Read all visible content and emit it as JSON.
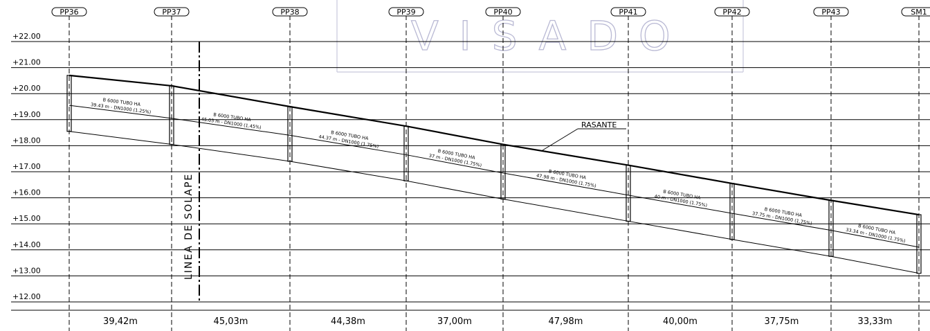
{
  "watermark": "VISADO",
  "levels": [
    "+22.00",
    "+21.00",
    "+20.00",
    "+19.00",
    "+18.00",
    "+17.00",
    "+16.00",
    "+15.00",
    "+14.00",
    "+13.00",
    "+12.00"
  ],
  "manholes": [
    {
      "label": "PP36",
      "grade": 20.7,
      "invert": 18.55
    },
    {
      "label": "PP37",
      "grade": 20.3,
      "invert": 18.05
    },
    {
      "label": "PP38",
      "grade": 19.5,
      "invert": 17.4
    },
    {
      "label": "PP39",
      "grade": 18.75,
      "invert": 16.65
    },
    {
      "label": "PP40",
      "grade": 18.05,
      "invert": 15.95
    },
    {
      "label": "PP41",
      "grade": 17.25,
      "invert": 15.1
    },
    {
      "label": "PP42",
      "grade": 16.55,
      "invert": 14.4
    },
    {
      "label": "PP43",
      "grade": 15.9,
      "invert": 13.75
    },
    {
      "label": "SM1",
      "grade": 15.35,
      "invert": 13.1
    }
  ],
  "pipes": [
    {
      "line1": "B 6000 TUBO HA",
      "line2": "39.43 m - DN1000 (1.25%)"
    },
    {
      "line1": "B 6000 TUBO HA",
      "line2": "45.03 m - DN1000 (1.45%)"
    },
    {
      "line1": "B 6000 TUBO HA",
      "line2": "44.37 m - DN1000 (1.75%)"
    },
    {
      "line1": "B 6000 TUBO HA",
      "line2": "37 m - DN1000 (1.75%)"
    },
    {
      "line1": "B 6000 TUBO HA",
      "line2": "47.98 m - DN1000 (1.75%)"
    },
    {
      "line1": "B 6000 TUBO HA",
      "line2": "40 m - DN1000 (1.75%)"
    },
    {
      "line1": "B 6000 TUBO HA",
      "line2": "37.75 m - DN1000 (1.75%)"
    },
    {
      "line1": "B 6000 TUBO HA",
      "line2": "33.34 m - DN1000 (1.75%)"
    }
  ],
  "distances": [
    "39,42m",
    "45,03m",
    "44,38m",
    "37,00m",
    "47,98m",
    "40,00m",
    "37,75m",
    "33,33m"
  ],
  "overlap_label": "LINEA DE SOLAPE",
  "rasante_label": "RASANTE"
}
